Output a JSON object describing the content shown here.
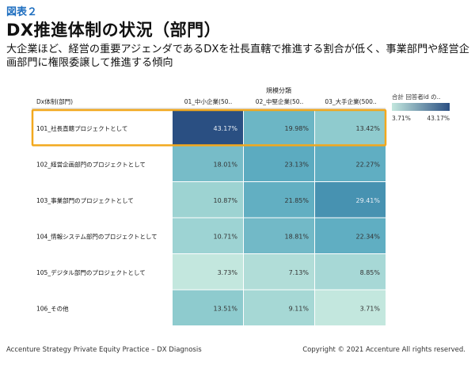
{
  "figure_label": "図表２",
  "title": "DX推進体制の状況（部門）",
  "subtitle": "大企業ほど、経営の重要アジェンダであるDXを社長直轄で推進する割合が低く、事業部門や経営企画部門に権限委譲して推進する傾向",
  "chart_data": {
    "type": "heatmap",
    "row_header": "Dx体制(部門)",
    "column_group_label": "規模分類",
    "categories": [
      "01_中小企業(50..",
      "02_中堅企業(50..",
      "03_大手企業(500.."
    ],
    "rows": [
      {
        "label": "101_社長直轄プロジェクトとして",
        "values": [
          "43.17%",
          "19.98%",
          "13.42%"
        ],
        "nums": [
          43.17,
          19.98,
          13.42
        ]
      },
      {
        "label": "102_経営企画部門のプロジェクトとして",
        "values": [
          "18.01%",
          "23.13%",
          "22.27%"
        ],
        "nums": [
          18.01,
          23.13,
          22.27
        ]
      },
      {
        "label": "103_事業部門のプロジェクトとして",
        "values": [
          "10.87%",
          "21.85%",
          "29.41%"
        ],
        "nums": [
          10.87,
          21.85,
          29.41
        ]
      },
      {
        "label": "104_情報システム部門のプロジェクトとして",
        "values": [
          "10.71%",
          "18.81%",
          "22.34%"
        ],
        "nums": [
          10.71,
          18.81,
          22.34
        ]
      },
      {
        "label": "105_デジタル部門のプロジェクトとして",
        "values": [
          "3.73%",
          "7.13%",
          "8.85%"
        ],
        "nums": [
          3.73,
          7.13,
          8.85
        ]
      },
      {
        "label": "106_その他",
        "values": [
          "13.51%",
          "9.11%",
          "3.71%"
        ],
        "nums": [
          13.51,
          9.11,
          3.71
        ]
      }
    ],
    "legend": {
      "title": "合計 回答者id の..",
      "min_label": "3.71%",
      "max_label": "43.17%",
      "min": 3.71,
      "max": 43.17
    },
    "color_scale": [
      "#c3e7de",
      "#8ecbce",
      "#5aaac0",
      "#3a82a8",
      "#2a4f82"
    ],
    "highlight_row": 0,
    "highlight_color": "#f2a81d"
  },
  "footer": {
    "left": "Accenture Strategy Private Equity Practice – DX Diagnosis",
    "right": "Copyright © 2021 Accenture  All rights reserved."
  }
}
